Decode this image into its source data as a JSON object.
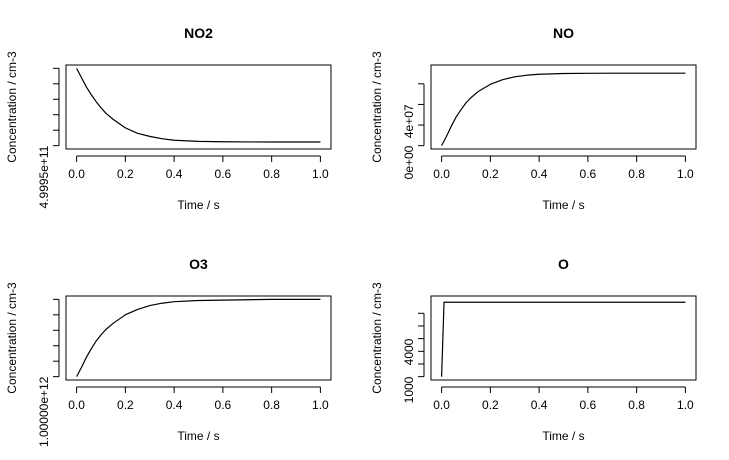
{
  "chart_data": [
    {
      "type": "line",
      "title": "NO2",
      "xlabel": "Time / s",
      "ylabel": "Concentration / cm-3",
      "xlim": [
        0,
        1
      ],
      "ylim": [
        0,
        1
      ],
      "x_ticks": [
        "0.0",
        "0.2",
        "0.4",
        "0.6",
        "0.8",
        "1.0"
      ],
      "y_tick_labels": [
        {
          "value": 0.0,
          "label": "4.9995e+11"
        }
      ],
      "y_minor_ticks": [
        0.0,
        0.2,
        0.4,
        0.6,
        0.8,
        1.0
      ],
      "x": [
        0,
        0.02,
        0.04,
        0.06,
        0.08,
        0.1,
        0.12,
        0.15,
        0.2,
        0.25,
        0.3,
        0.35,
        0.4,
        0.5,
        0.6,
        0.7,
        0.8,
        0.9,
        1.0
      ],
      "y": [
        1.0,
        0.88,
        0.76,
        0.66,
        0.57,
        0.49,
        0.42,
        0.34,
        0.23,
        0.16,
        0.12,
        0.09,
        0.07,
        0.055,
        0.05,
        0.048,
        0.047,
        0.047,
        0.047
      ]
    },
    {
      "type": "line",
      "title": "NO",
      "xlabel": "Time / s",
      "ylabel": "Concentration / cm-3",
      "xlim": [
        0,
        1
      ],
      "ylim": [
        0,
        75000000.0
      ],
      "x_ticks": [
        "0.0",
        "0.2",
        "0.4",
        "0.6",
        "0.8",
        "1.0"
      ],
      "y_tick_labels": [
        {
          "value": 0,
          "label": "0e+00"
        },
        {
          "value": 40000000,
          "label": "4e+07"
        }
      ],
      "y_minor_ticks": [
        0,
        20000000,
        40000000,
        60000000
      ],
      "x": [
        0,
        0.02,
        0.04,
        0.06,
        0.08,
        0.1,
        0.12,
        0.15,
        0.2,
        0.25,
        0.3,
        0.35,
        0.4,
        0.5,
        0.6,
        0.7,
        0.8,
        0.9,
        1.0
      ],
      "y": [
        0,
        9000000,
        19000000,
        28000000,
        35000000,
        41500000,
        46500000,
        52500000,
        59500000,
        64000000,
        66800000,
        68400000,
        69300000,
        70000000,
        70200000,
        70300000,
        70300000,
        70300000,
        70300000
      ]
    },
    {
      "type": "line",
      "title": "O3",
      "xlabel": "Time / s",
      "ylabel": "Concentration / cm-3",
      "xlim": [
        0,
        1
      ],
      "ylim": [
        0,
        1
      ],
      "x_ticks": [
        "0.0",
        "0.2",
        "0.4",
        "0.6",
        "0.8",
        "1.0"
      ],
      "y_tick_labels": [
        {
          "value": 0.0,
          "label": "1.00000e+12"
        }
      ],
      "y_minor_ticks": [
        0.0,
        0.2,
        0.4,
        0.6,
        0.8,
        1.0
      ],
      "x": [
        0,
        0.02,
        0.04,
        0.06,
        0.08,
        0.1,
        0.12,
        0.15,
        0.2,
        0.25,
        0.3,
        0.35,
        0.4,
        0.5,
        0.6,
        0.7,
        0.8,
        0.9,
        1.0
      ],
      "y": [
        0.0,
        0.12,
        0.25,
        0.36,
        0.46,
        0.54,
        0.61,
        0.69,
        0.8,
        0.87,
        0.92,
        0.95,
        0.97,
        0.985,
        0.99,
        0.995,
        1.0,
        1.0,
        1.0
      ]
    },
    {
      "type": "line",
      "title": "O",
      "xlabel": "Time / s",
      "ylabel": "Concentration / cm-3",
      "xlim": [
        0,
        1
      ],
      "ylim": [
        1000,
        7100
      ],
      "x_ticks": [
        "0.0",
        "0.2",
        "0.4",
        "0.6",
        "0.8",
        "1.0"
      ],
      "y_tick_labels": [
        {
          "value": 1000,
          "label": "1000"
        },
        {
          "value": 4000,
          "label": "4000"
        }
      ],
      "y_minor_ticks": [
        1000,
        2000,
        3000,
        4000,
        5000,
        6000
      ],
      "x": [
        0,
        0.01,
        0.02,
        0.05,
        0.1,
        0.2,
        0.4,
        0.6,
        0.8,
        1.0
      ],
      "y": [
        1000,
        6870,
        6870,
        6870,
        6870,
        6870,
        6870,
        6870,
        6870,
        6870
      ]
    }
  ]
}
